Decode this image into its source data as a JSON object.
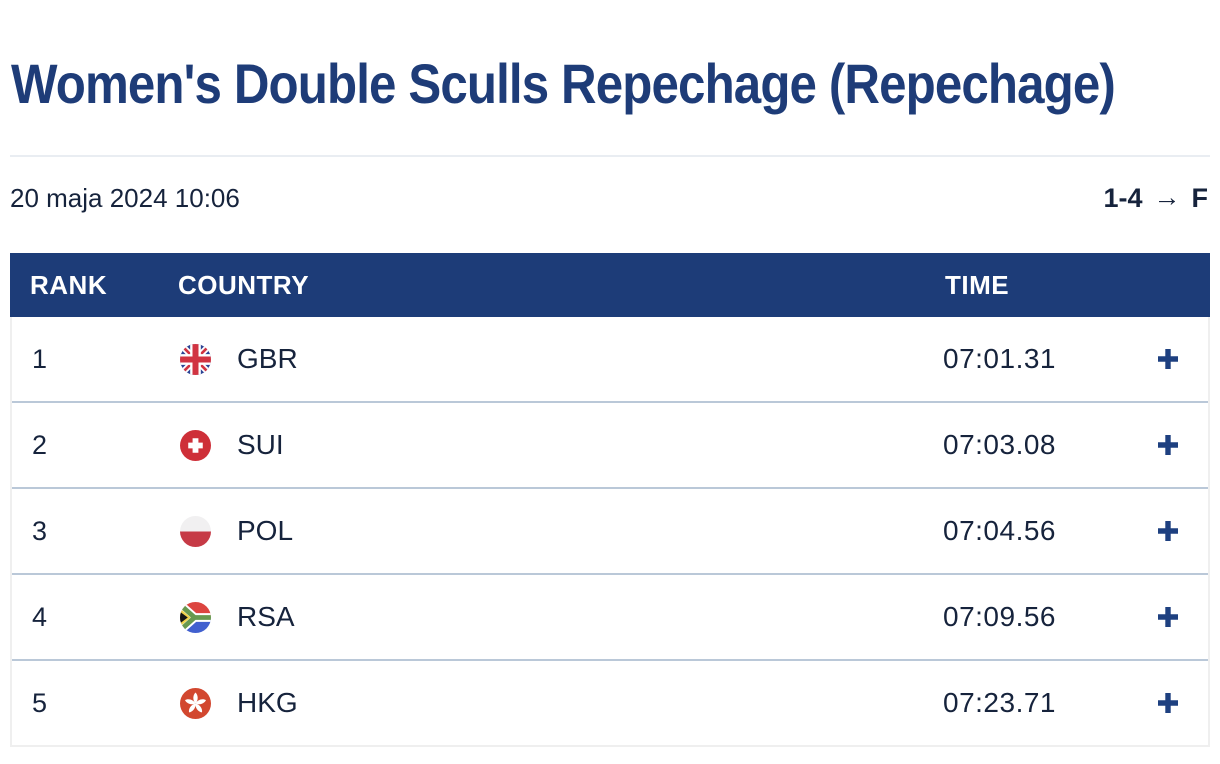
{
  "header": {
    "title": "Women's Double Sculls Repechage (Repechage)"
  },
  "meta": {
    "datetime": "20 maja 2024 10:06",
    "progression": {
      "range": "1-4",
      "arrow": "→",
      "target": "F"
    }
  },
  "table": {
    "columns": [
      "RANK",
      "COUNTRY",
      "TIME"
    ],
    "rows": [
      {
        "rank": "1",
        "country": "GBR",
        "flag": "gbr",
        "time": "07:01.31"
      },
      {
        "rank": "2",
        "country": "SUI",
        "flag": "sui",
        "time": "07:03.08"
      },
      {
        "rank": "3",
        "country": "POL",
        "flag": "pol",
        "time": "07:04.56"
      },
      {
        "rank": "4",
        "country": "RSA",
        "flag": "rsa",
        "time": "07:09.56"
      },
      {
        "rank": "5",
        "country": "HKG",
        "flag": "hkg",
        "time": "07:23.71"
      }
    ]
  },
  "colors": {
    "header_background": "#1d3c78",
    "title_text": "#1e3c78",
    "primary_text": "#16233c",
    "accent_blue": "#1e4080",
    "row_divider": "#bac8d8",
    "outer_border": "#efefef",
    "title_divider": "#e9edf2"
  }
}
